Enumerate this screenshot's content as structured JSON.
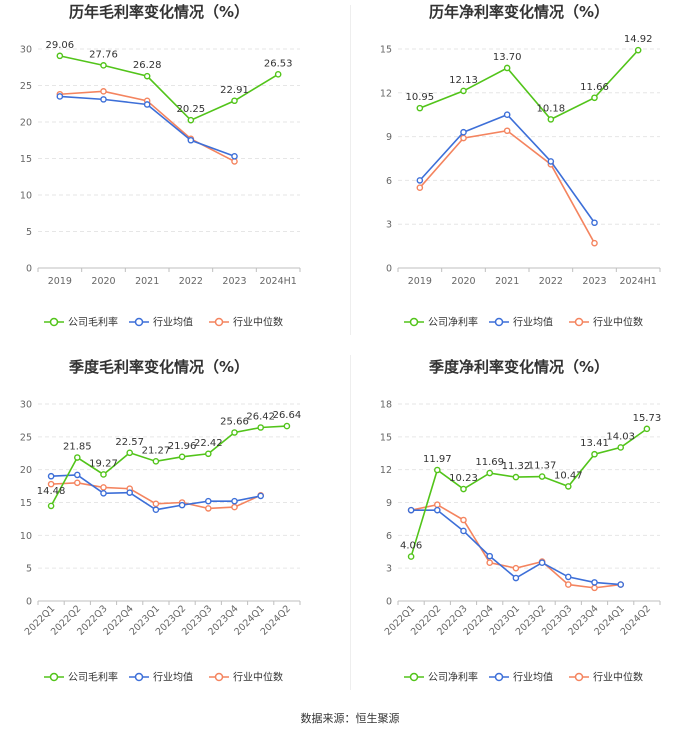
{
  "colors": {
    "company": "#52c41a",
    "avg": "#3d6fd8",
    "median": "#f4845f",
    "grid": "#e6e6e6",
    "axis": "#bfbfbf"
  },
  "source": "数据来源：恒生聚源",
  "chart_data": [
    {
      "type": "line",
      "title": "历年毛利率变化情况（%）",
      "categories": [
        "2019",
        "2020",
        "2021",
        "2022",
        "2023",
        "2024H1"
      ],
      "ylim": [
        0,
        30
      ],
      "yticks": [
        0,
        5,
        10,
        15,
        20,
        25,
        30
      ],
      "ytick_labels": [
        "0",
        "5",
        "10",
        "15",
        "20",
        "25",
        "30"
      ],
      "rotate_labels": false,
      "legend": [
        "公司毛利率",
        "行业均值",
        "行业中位数"
      ],
      "series": [
        {
          "name": "公司毛利率",
          "values": [
            29.06,
            27.76,
            26.28,
            20.25,
            22.91,
            26.53
          ],
          "labels": [
            "29.06",
            "27.76",
            "26.28",
            "20.25",
            "22.91",
            "26.53"
          ]
        },
        {
          "name": "行业均值",
          "values": [
            23.5,
            23.1,
            22.4,
            17.5,
            15.3,
            null
          ]
        },
        {
          "name": "行业中位数",
          "values": [
            23.8,
            24.2,
            22.9,
            17.7,
            14.6,
            null
          ]
        }
      ]
    },
    {
      "type": "line",
      "title": "历年净利率变化情况（%）",
      "categories": [
        "2019",
        "2020",
        "2021",
        "2022",
        "2023",
        "2024H1"
      ],
      "ylim": [
        0,
        15
      ],
      "yticks": [
        0,
        3,
        6,
        9,
        12,
        15
      ],
      "ytick_labels": [
        "0",
        "3",
        "6",
        "9",
        "12",
        "15"
      ],
      "rotate_labels": false,
      "legend": [
        "公司净利率",
        "行业均值",
        "行业中位数"
      ],
      "series": [
        {
          "name": "公司净利率",
          "values": [
            10.95,
            12.13,
            13.7,
            10.18,
            11.66,
            14.92
          ],
          "labels": [
            "10.95",
            "12.13",
            "13.70",
            "10.18",
            "11.66",
            "14.92"
          ]
        },
        {
          "name": "行业均值",
          "values": [
            6.0,
            9.3,
            10.5,
            7.3,
            3.1,
            null
          ]
        },
        {
          "name": "行业中位数",
          "values": [
            5.5,
            8.9,
            9.4,
            7.1,
            1.7,
            null
          ]
        }
      ]
    },
    {
      "type": "line",
      "title": "季度毛利率变化情况（%）",
      "categories": [
        "2022Q1",
        "2022Q2",
        "2022Q3",
        "2022Q4",
        "2023Q1",
        "2023Q2",
        "2023Q3",
        "2023Q4",
        "2024Q1",
        "2024Q2"
      ],
      "ylim": [
        0,
        30
      ],
      "yticks": [
        0,
        5,
        10,
        15,
        20,
        25,
        30
      ],
      "ytick_labels": [
        "0",
        "5",
        "10",
        "15",
        "20",
        "25",
        "30"
      ],
      "rotate_labels": true,
      "legend": [
        "公司毛利率",
        "行业均值",
        "行业中位数"
      ],
      "series": [
        {
          "name": "公司毛利率",
          "values": [
            14.48,
            21.85,
            19.27,
            22.57,
            21.27,
            21.96,
            22.42,
            25.66,
            26.42,
            26.64
          ],
          "labels": [
            "14.48",
            "21.85",
            "19.27",
            "22.57",
            "21.27",
            "21.96",
            "22.42",
            "25.66",
            "26.42",
            "26.64"
          ]
        },
        {
          "name": "行业均值",
          "values": [
            19.0,
            19.2,
            16.4,
            16.5,
            13.9,
            14.6,
            15.2,
            15.2,
            16.0,
            null
          ]
        },
        {
          "name": "行业中位数",
          "values": [
            17.8,
            18.0,
            17.3,
            17.1,
            14.8,
            15.0,
            14.1,
            14.3,
            16.1,
            null
          ]
        }
      ]
    },
    {
      "type": "line",
      "title": "季度净利率变化情况（%）",
      "categories": [
        "2022Q1",
        "2022Q2",
        "2022Q3",
        "2022Q4",
        "2023Q1",
        "2023Q2",
        "2023Q3",
        "2023Q4",
        "2024Q1",
        "2024Q2"
      ],
      "ylim": [
        0,
        18
      ],
      "yticks": [
        0,
        3,
        6,
        9,
        12,
        15,
        18
      ],
      "ytick_labels": [
        "0",
        "3",
        "6",
        "9",
        "12",
        "15",
        "18"
      ],
      "rotate_labels": true,
      "legend": [
        "公司净利率",
        "行业均值",
        "行业中位数"
      ],
      "series": [
        {
          "name": "公司净利率",
          "values": [
            4.06,
            11.97,
            10.23,
            11.69,
            11.32,
            11.37,
            10.47,
            13.41,
            14.03,
            15.73
          ],
          "labels": [
            "4.06",
            "11.97",
            "10.23",
            "11.69",
            "11.32",
            "11.37",
            "10.47",
            "13.41",
            "14.03",
            "15.73"
          ]
        },
        {
          "name": "行业均值",
          "values": [
            8.3,
            8.3,
            6.4,
            4.1,
            2.1,
            3.5,
            2.2,
            1.7,
            1.5,
            null
          ]
        },
        {
          "name": "行业中位数",
          "values": [
            8.3,
            8.8,
            7.4,
            3.5,
            3.0,
            3.6,
            1.5,
            1.2,
            1.5,
            null
          ]
        }
      ]
    }
  ]
}
